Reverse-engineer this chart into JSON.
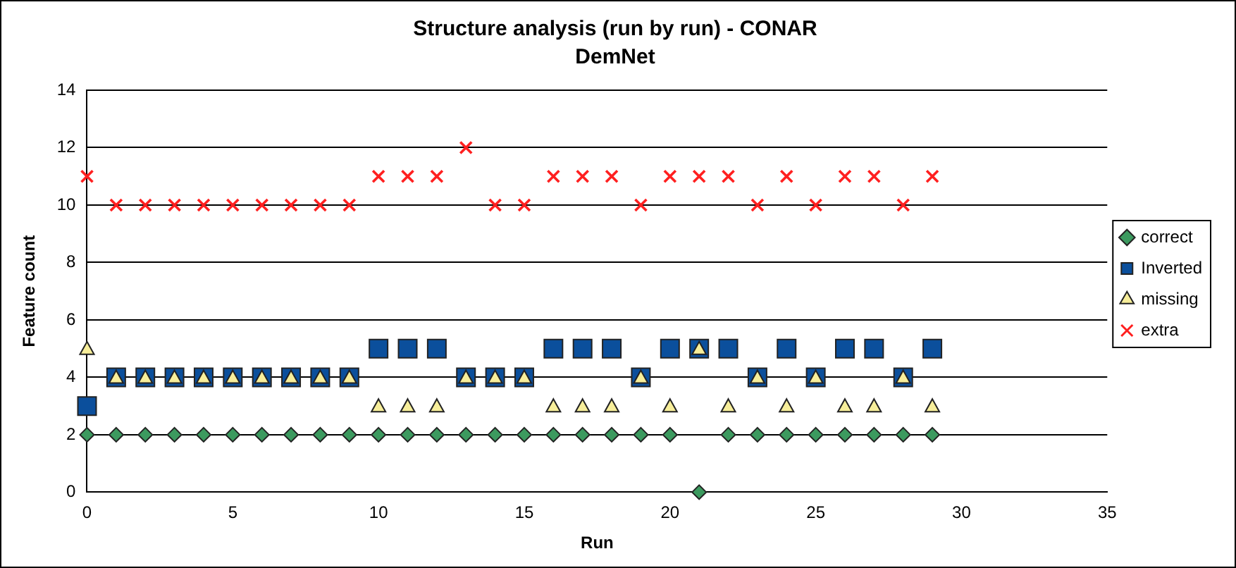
{
  "chart_data": {
    "type": "scatter",
    "title": "Structure analysis (run by run) - CONAR",
    "subtitle": "DemNet",
    "xlabel": "Run",
    "ylabel": "Feature count",
    "x": [
      0,
      1,
      2,
      3,
      4,
      5,
      6,
      7,
      8,
      9,
      10,
      11,
      12,
      13,
      14,
      15,
      16,
      17,
      18,
      19,
      20,
      21,
      22,
      23,
      24,
      25,
      26,
      27,
      28,
      29
    ],
    "series": [
      {
        "name": "correct",
        "color": "#3c9a5f",
        "marker": "diamond",
        "values": [
          2,
          2,
          2,
          2,
          2,
          2,
          2,
          2,
          2,
          2,
          2,
          2,
          2,
          2,
          2,
          2,
          2,
          2,
          2,
          2,
          2,
          0,
          2,
          2,
          2,
          2,
          2,
          2,
          2,
          2
        ]
      },
      {
        "name": "Inverted",
        "color": "#0b4f9c",
        "marker": "square",
        "values": [
          3,
          4,
          4,
          4,
          4,
          4,
          4,
          4,
          4,
          4,
          5,
          5,
          5,
          4,
          4,
          4,
          5,
          5,
          5,
          4,
          5,
          5,
          5,
          4,
          5,
          4,
          5,
          5,
          4,
          5
        ]
      },
      {
        "name": "missing",
        "color": "#f7ee9a",
        "marker": "triangle",
        "values": [
          5,
          4,
          4,
          4,
          4,
          4,
          4,
          4,
          4,
          4,
          3,
          3,
          3,
          4,
          4,
          4,
          3,
          3,
          3,
          4,
          3,
          5,
          3,
          4,
          3,
          4,
          3,
          3,
          4,
          3
        ]
      },
      {
        "name": "extra",
        "color": "#ff2020",
        "marker": "cross",
        "values": [
          11,
          10,
          10,
          10,
          10,
          10,
          10,
          10,
          10,
          10,
          11,
          11,
          11,
          12,
          10,
          10,
          11,
          11,
          11,
          10,
          11,
          11,
          11,
          10,
          11,
          10,
          11,
          11,
          10,
          11
        ]
      }
    ],
    "xlim": [
      0,
      35
    ],
    "xticks": [
      0,
      5,
      10,
      15,
      20,
      25,
      30,
      35
    ],
    "ylim": [
      0,
      14
    ],
    "yticks": [
      0,
      2,
      4,
      6,
      8,
      10,
      12,
      14
    ],
    "grid": "y",
    "legend": "right"
  }
}
